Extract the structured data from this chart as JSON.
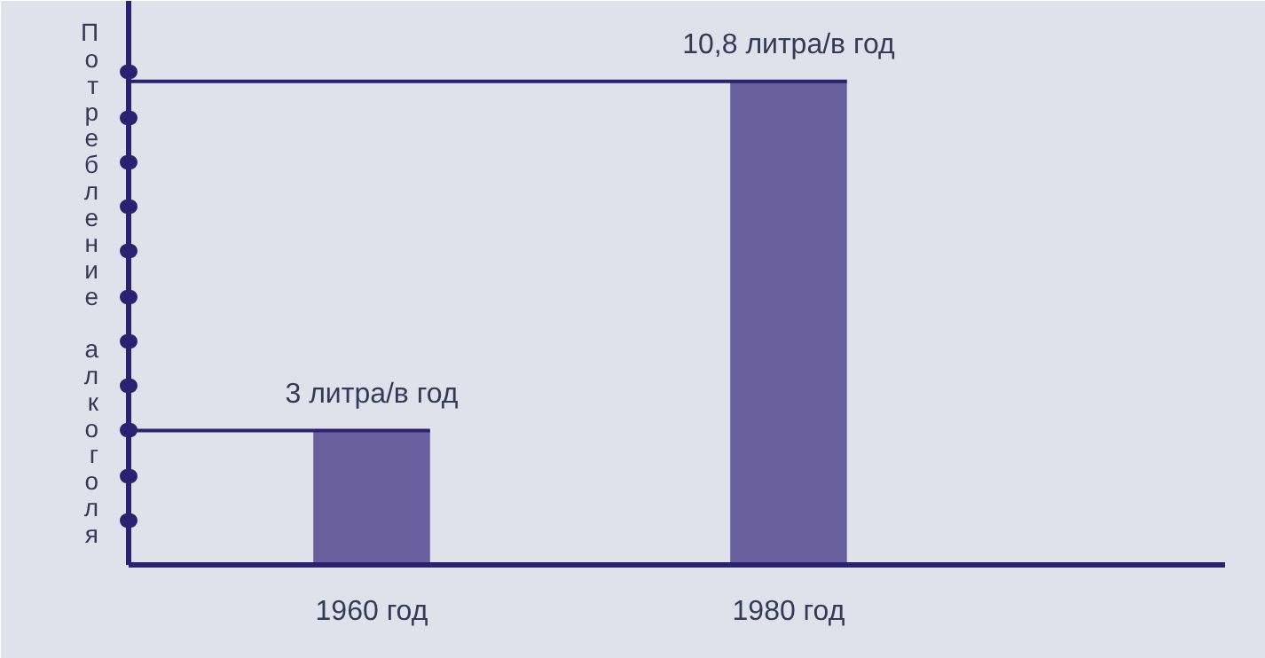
{
  "chart_data": {
    "type": "bar",
    "ylabel": "Потребление алкоголя",
    "categories": [
      "1960 год",
      "1980 год"
    ],
    "values": [
      3,
      10.8
    ],
    "color": "#6a5f9e",
    "value_labels": [
      "3 литра/в год",
      "10,8 литра/в год"
    ],
    "ylim": [
      0,
      12.6
    ],
    "yticks": [
      {
        "value": 1,
        "label": null
      },
      {
        "value": 2,
        "label": null
      },
      {
        "value": 3,
        "label": null
      },
      {
        "value": 4,
        "label": null
      },
      {
        "value": 5,
        "label": null
      },
      {
        "value": 6,
        "label": null
      },
      {
        "value": 7,
        "label": null
      },
      {
        "value": 8,
        "label": null
      },
      {
        "value": 9,
        "label": null
      },
      {
        "value": 10,
        "label": null
      },
      {
        "value": 11,
        "label": null
      }
    ],
    "ref_lines": [
      {
        "axis": "y",
        "value": 3,
        "color": "#2a2270"
      },
      {
        "axis": "y",
        "value": 10.8,
        "color": "#2a2270"
      }
    ],
    "grid": false
  }
}
